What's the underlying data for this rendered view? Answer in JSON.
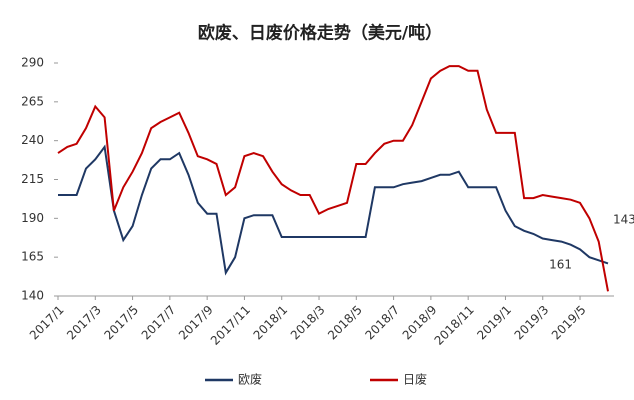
{
  "chart_data": {
    "type": "line",
    "title": "欧废、日废价格走势（美元/吨）",
    "categories": [
      "2017/1",
      null,
      null,
      null,
      "2017/3",
      null,
      null,
      null,
      "2017/5",
      null,
      null,
      null,
      "2017/7",
      null,
      null,
      null,
      "2017/9",
      null,
      null,
      null,
      "2017/11",
      null,
      null,
      null,
      "2018/1",
      null,
      null,
      null,
      "2018/3",
      null,
      null,
      null,
      "2018/5",
      null,
      null,
      null,
      "2018/7",
      null,
      null,
      null,
      "2018/9",
      null,
      null,
      null,
      "2018/11",
      null,
      null,
      null,
      "2019/1",
      null,
      null,
      null,
      "2019/3",
      null,
      null,
      null,
      "2019/5",
      null,
      null,
      null
    ],
    "series": [
      {
        "name": "欧废",
        "color": "#1f3864",
        "values": [
          205,
          205,
          205,
          222,
          228,
          236,
          195,
          176,
          185,
          205,
          222,
          228,
          228,
          232,
          218,
          200,
          193,
          193,
          155,
          165,
          190,
          192,
          192,
          192,
          178,
          178,
          178,
          178,
          178,
          178,
          178,
          178,
          178,
          178,
          210,
          210,
          210,
          212,
          213,
          214,
          216,
          218,
          218,
          220,
          210,
          210,
          210,
          210,
          195,
          185,
          182,
          180,
          177,
          176,
          175,
          173,
          170,
          165,
          163,
          161
        ]
      },
      {
        "name": "日废",
        "color": "#c00000",
        "values": [
          232,
          236,
          238,
          248,
          262,
          255,
          195,
          210,
          220,
          232,
          248,
          252,
          255,
          258,
          245,
          230,
          228,
          225,
          205,
          210,
          230,
          232,
          230,
          220,
          212,
          208,
          205,
          205,
          193,
          196,
          198,
          200,
          225,
          225,
          232,
          238,
          240,
          240,
          250,
          265,
          280,
          285,
          288,
          288,
          285,
          285,
          260,
          245,
          245,
          245,
          203,
          203,
          205,
          204,
          203,
          202,
          200,
          190,
          175,
          143
        ]
      }
    ],
    "ylim": [
      140,
      290
    ],
    "yticks": [
      140,
      165,
      190,
      215,
      240,
      265,
      290
    ],
    "annotations": [
      "143",
      "161"
    ]
  }
}
